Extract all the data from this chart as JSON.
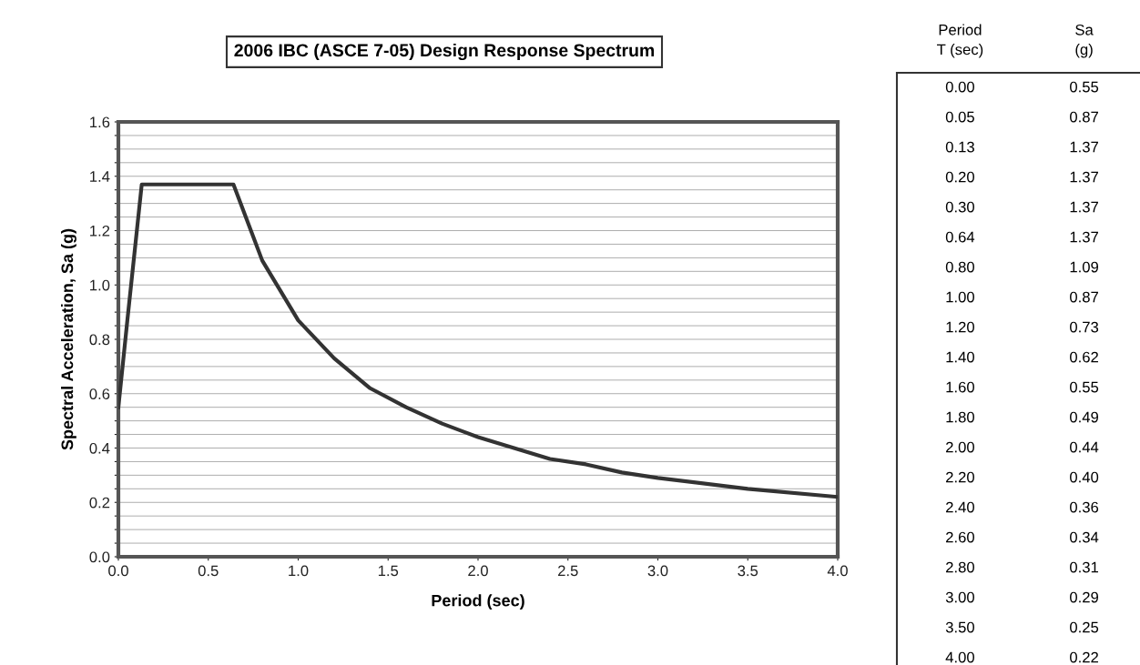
{
  "chart_data": [
    {
      "type": "line",
      "title": "2006 IBC (ASCE 7-05) Design Response Spectrum",
      "xlabel": "Period (sec)",
      "ylabel": "Spectral Acceleration, Sa (g)",
      "x": [
        0.0,
        0.05,
        0.13,
        0.2,
        0.3,
        0.64,
        0.8,
        1.0,
        1.2,
        1.4,
        1.6,
        1.8,
        2.0,
        2.2,
        2.4,
        2.6,
        2.8,
        3.0,
        3.5,
        4.0
      ],
      "series": [
        {
          "color": "#333333",
          "values": [
            0.55,
            0.87,
            1.37,
            1.37,
            1.37,
            1.37,
            1.09,
            0.87,
            0.73,
            0.62,
            0.55,
            0.49,
            0.44,
            0.4,
            0.36,
            0.34,
            0.31,
            0.29,
            0.25,
            0.22
          ]
        }
      ],
      "xlim": [
        0.0,
        4.0
      ],
      "xticks": [
        {
          "value": 0.0,
          "label": "0.0"
        },
        {
          "value": 0.5,
          "label": "0.5"
        },
        {
          "value": 1.0,
          "label": "1.0"
        },
        {
          "value": 1.5,
          "label": "1.5"
        },
        {
          "value": 2.0,
          "label": "2.0"
        },
        {
          "value": 2.5,
          "label": "2.5"
        },
        {
          "value": 3.0,
          "label": "3.0"
        },
        {
          "value": 3.5,
          "label": "3.5"
        },
        {
          "value": 4.0,
          "label": "4.0"
        }
      ],
      "ylim": [
        0.0,
        1.6
      ],
      "yticks": [
        {
          "value": 0.0,
          "label": "0.0"
        },
        {
          "value": 0.05,
          "label": null
        },
        {
          "value": 0.1,
          "label": null
        },
        {
          "value": 0.15,
          "label": null
        },
        {
          "value": 0.2,
          "label": "0.2"
        },
        {
          "value": 0.25,
          "label": null
        },
        {
          "value": 0.3,
          "label": null
        },
        {
          "value": 0.35,
          "label": null
        },
        {
          "value": 0.4,
          "label": "0.4"
        },
        {
          "value": 0.45,
          "label": null
        },
        {
          "value": 0.5,
          "label": null
        },
        {
          "value": 0.55,
          "label": null
        },
        {
          "value": 0.6,
          "label": "0.6"
        },
        {
          "value": 0.65,
          "label": null
        },
        {
          "value": 0.7,
          "label": null
        },
        {
          "value": 0.75,
          "label": null
        },
        {
          "value": 0.8,
          "label": "0.8"
        },
        {
          "value": 0.85,
          "label": null
        },
        {
          "value": 0.9,
          "label": null
        },
        {
          "value": 0.95,
          "label": null
        },
        {
          "value": 1.0,
          "label": "1.0"
        },
        {
          "value": 1.05,
          "label": null
        },
        {
          "value": 1.1,
          "label": null
        },
        {
          "value": 1.15,
          "label": null
        },
        {
          "value": 1.2,
          "label": "1.2"
        },
        {
          "value": 1.25,
          "label": null
        },
        {
          "value": 1.3,
          "label": null
        },
        {
          "value": 1.35,
          "label": null
        },
        {
          "value": 1.4,
          "label": "1.4"
        },
        {
          "value": 1.45,
          "label": null
        },
        {
          "value": 1.5,
          "label": null
        },
        {
          "value": 1.55,
          "label": null
        },
        {
          "value": 1.6,
          "label": "1.6"
        }
      ],
      "grid": "y",
      "marker": "none",
      "line_style": "solid"
    },
    {
      "type": "other",
      "annotations": [
        "Period\nT (sec)",
        "Sa\n(g)"
      ],
      "categories": [
        "0.00",
        "0.05",
        "0.13",
        "0.20",
        "0.30",
        "0.64",
        "0.80",
        "1.00",
        "1.20",
        "1.40",
        "1.60",
        "1.80",
        "2.00",
        "2.20",
        "2.40",
        "2.60",
        "2.80",
        "3.00",
        "3.50",
        "4.00"
      ],
      "value_labels": [
        "0.55",
        "0.87",
        "1.37",
        "1.37",
        "1.37",
        "1.37",
        "1.09",
        "0.87",
        "0.73",
        "0.62",
        "0.55",
        "0.49",
        "0.44",
        "0.40",
        "0.36",
        "0.34",
        "0.31",
        "0.29",
        "0.25",
        "0.22"
      ]
    }
  ]
}
